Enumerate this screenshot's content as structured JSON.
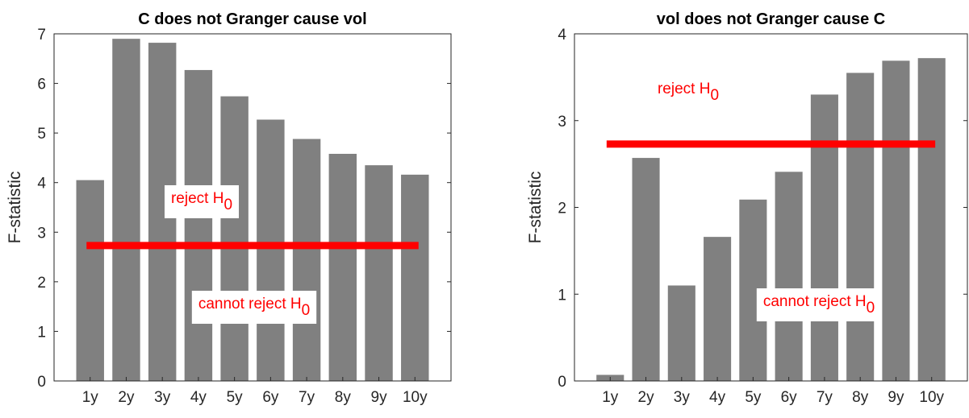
{
  "chart_data": [
    {
      "type": "bar",
      "title": "C does not Granger cause vol",
      "y_label": "F-statistic",
      "categories": [
        "1y",
        "2y",
        "3y",
        "4y",
        "5y",
        "6y",
        "7y",
        "8y",
        "9y",
        "10y"
      ],
      "values": [
        4.05,
        6.9,
        6.82,
        6.27,
        5.74,
        5.27,
        4.88,
        4.58,
        4.35,
        4.16
      ],
      "color": "#808080",
      "ylim": [
        0,
        7
      ],
      "yticks": [
        0,
        1,
        2,
        3,
        4,
        5,
        6,
        7
      ],
      "threshold": {
        "value": 2.73,
        "color": "#ff0000"
      },
      "annotations": [
        {
          "text": "reject H",
          "subscript": "0",
          "color": "#ff0000"
        },
        {
          "text": "cannot reject H",
          "subscript": "0",
          "color": "#ff0000"
        }
      ]
    },
    {
      "type": "bar",
      "title": "vol does not Granger cause C",
      "y_label": "F-statistic",
      "categories": [
        "1y",
        "2y",
        "3y",
        "4y",
        "5y",
        "6y",
        "7y",
        "8y",
        "9y",
        "10y"
      ],
      "values": [
        0.07,
        2.57,
        1.1,
        1.66,
        2.09,
        2.41,
        3.3,
        3.55,
        3.69,
        3.72
      ],
      "color": "#808080",
      "ylim": [
        0,
        4
      ],
      "yticks": [
        0,
        1,
        2,
        3,
        4
      ],
      "threshold": {
        "value": 2.73,
        "color": "#ff0000"
      },
      "annotations": [
        {
          "text": "reject H",
          "subscript": "0",
          "color": "#ff0000"
        },
        {
          "text": "cannot reject H",
          "subscript": "0",
          "color": "#ff0000"
        }
      ]
    }
  ]
}
